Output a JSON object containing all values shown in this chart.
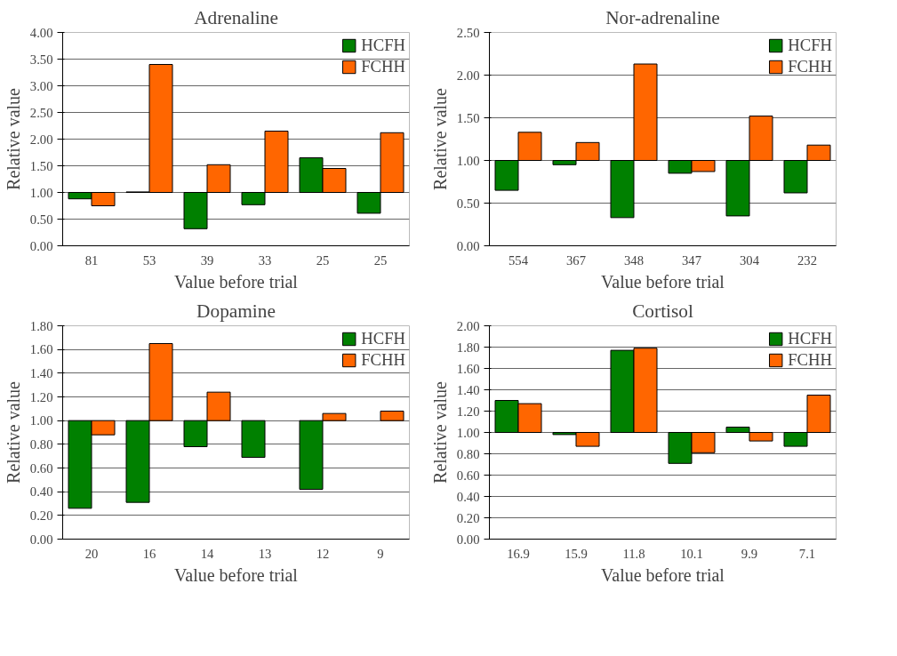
{
  "chart_data": [
    {
      "type": "bar",
      "title": "Adrenaline",
      "xlabel": "Value before trial",
      "ylabel": "Relative value",
      "categories": [
        "81",
        "53",
        "39",
        "33",
        "25",
        "25"
      ],
      "series": [
        {
          "name": "HCFH",
          "color": "#008000",
          "base": [
            1,
            1,
            1,
            1,
            1,
            1
          ],
          "values": [
            -0.12,
            0.01,
            -0.68,
            -0.23,
            0.65,
            -0.39
          ]
        },
        {
          "name": "FCHH",
          "color": "#ff6600",
          "base": [
            1,
            1,
            1,
            1,
            1,
            1
          ],
          "values": [
            -0.25,
            2.4,
            0.52,
            1.15,
            0.45,
            1.12
          ]
        }
      ],
      "ylim": [
        0,
        4
      ],
      "yticks": [
        {
          "value": 0,
          "label": "0.00"
        },
        {
          "value": 0.5,
          "label": "0.50"
        },
        {
          "value": 1,
          "label": "1.00"
        },
        {
          "value": 1.5,
          "label": "1.50"
        },
        {
          "value": 2,
          "label": "2.00"
        },
        {
          "value": 2.5,
          "label": "2.50"
        },
        {
          "value": 3,
          "label": "3.00"
        },
        {
          "value": 3.5,
          "label": "3.50"
        },
        {
          "value": 4,
          "label": "4.00"
        }
      ],
      "grid": "y",
      "legend": "top right"
    },
    {
      "type": "bar",
      "title": "Nor-adrenaline",
      "xlabel": "Value before trial",
      "ylabel": "Relative value",
      "categories": [
        "554",
        "367",
        "348",
        "347",
        "304",
        "232"
      ],
      "series": [
        {
          "name": "HCFH",
          "color": "#008000",
          "base": [
            1,
            1,
            1,
            1,
            1,
            1
          ],
          "values": [
            -0.35,
            -0.05,
            -0.67,
            -0.15,
            -0.65,
            -0.38
          ]
        },
        {
          "name": "FCHH",
          "color": "#ff6600",
          "base": [
            1,
            1,
            1,
            1,
            1,
            1
          ],
          "values": [
            0.33,
            0.21,
            1.13,
            -0.13,
            0.52,
            0.18
          ]
        }
      ],
      "ylim": [
        0,
        2.5
      ],
      "yticks": [
        {
          "value": 0,
          "label": "0.00"
        },
        {
          "value": 0.5,
          "label": "0.50"
        },
        {
          "value": 1,
          "label": "1.00"
        },
        {
          "value": 1.5,
          "label": "1.50"
        },
        {
          "value": 2,
          "label": "2.00"
        },
        {
          "value": 2.5,
          "label": "2.50"
        }
      ],
      "grid": "y",
      "legend": "top right"
    },
    {
      "type": "bar",
      "title": "Dopamine",
      "xlabel": "Value before trial",
      "ylabel": "Relative value",
      "categories": [
        "20",
        "16",
        "14",
        "13",
        "12",
        "9"
      ],
      "series": [
        {
          "name": "HCFH",
          "color": "#008000",
          "base": [
            1,
            1,
            1,
            1,
            1,
            null
          ],
          "values": [
            -0.74,
            -0.69,
            -0.22,
            -0.31,
            -0.58,
            null
          ]
        },
        {
          "name": "FCHH",
          "color": "#ff6600",
          "base": [
            1,
            1,
            1,
            null,
            1,
            1
          ],
          "values": [
            -0.12,
            0.65,
            0.24,
            null,
            0.06,
            0.08
          ]
        }
      ],
      "ylim": [
        0,
        1.8
      ],
      "yticks": [
        {
          "value": 0,
          "label": "0.00"
        },
        {
          "value": 0.2,
          "label": "0.20"
        },
        {
          "value": 0.4,
          "label": "0.40"
        },
        {
          "value": 0.6,
          "label": "0.60"
        },
        {
          "value": 0.8,
          "label": "0.80"
        },
        {
          "value": 1,
          "label": "1.00"
        },
        {
          "value": 1.2,
          "label": "1.20"
        },
        {
          "value": 1.4,
          "label": "1.40"
        },
        {
          "value": 1.6,
          "label": "1.60"
        },
        {
          "value": 1.8,
          "label": "1.80"
        }
      ],
      "grid": "y",
      "legend": "top right"
    },
    {
      "type": "bar",
      "title": "Cortisol",
      "xlabel": "Value before trial",
      "ylabel": "Relative value",
      "categories": [
        "16.9",
        "15.9",
        "11.8",
        "10.1",
        "9.9",
        "7.1"
      ],
      "series": [
        {
          "name": "HCFH",
          "color": "#008000",
          "base": [
            1,
            1,
            1,
            1,
            1,
            1
          ],
          "values": [
            0.3,
            -0.02,
            0.77,
            -0.29,
            0.05,
            -0.13
          ]
        },
        {
          "name": "FCHH",
          "color": "#ff6600",
          "base": [
            1,
            1,
            1,
            1,
            1,
            1
          ],
          "values": [
            0.27,
            -0.13,
            0.79,
            -0.19,
            -0.08,
            0.35
          ]
        }
      ],
      "ylim": [
        0,
        2
      ],
      "yticks": [
        {
          "value": 0,
          "label": "0.00"
        },
        {
          "value": 0.2,
          "label": "0.20"
        },
        {
          "value": 0.4,
          "label": "0.40"
        },
        {
          "value": 0.6,
          "label": "0.60"
        },
        {
          "value": 0.8,
          "label": "0.80"
        },
        {
          "value": 1,
          "label": "1.00"
        },
        {
          "value": 1.2,
          "label": "1.20"
        },
        {
          "value": 1.4,
          "label": "1.40"
        },
        {
          "value": 1.6,
          "label": "1.60"
        },
        {
          "value": 1.8,
          "label": "1.80"
        },
        {
          "value": 2,
          "label": "2.00"
        }
      ],
      "grid": "y",
      "legend": "top right"
    }
  ]
}
